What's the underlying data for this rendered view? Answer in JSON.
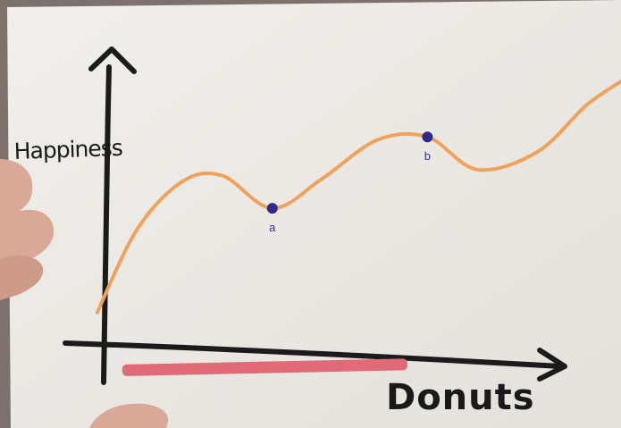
{
  "chart_data": {
    "type": "line",
    "title": "",
    "xlabel": "Donuts",
    "ylabel": "Happiness",
    "grid": false,
    "xlim": [
      0,
      10
    ],
    "ylim": [
      0,
      10
    ],
    "series": [
      {
        "color": "#f0a25a",
        "x": [
          -0.2,
          0.6,
          1.5,
          2.3,
          3.3,
          4.3,
          5.4,
          6.4,
          7.4,
          8.6,
          9.6,
          10.4
        ],
        "y": [
          1.0,
          3.8,
          5.4,
          5.6,
          4.5,
          5.5,
          6.8,
          6.9,
          5.8,
          6.4,
          8.0,
          8.9
        ]
      }
    ],
    "points": [
      {
        "label": "a",
        "x": 3.3,
        "y": 4.5,
        "color": "#2f2a8a"
      },
      {
        "label": "b",
        "x": 6.4,
        "y": 6.9,
        "color": "#2f2a8a"
      }
    ],
    "range_bar": {
      "from": 0.3,
      "to": 6.0,
      "color": "#e06a78"
    }
  }
}
